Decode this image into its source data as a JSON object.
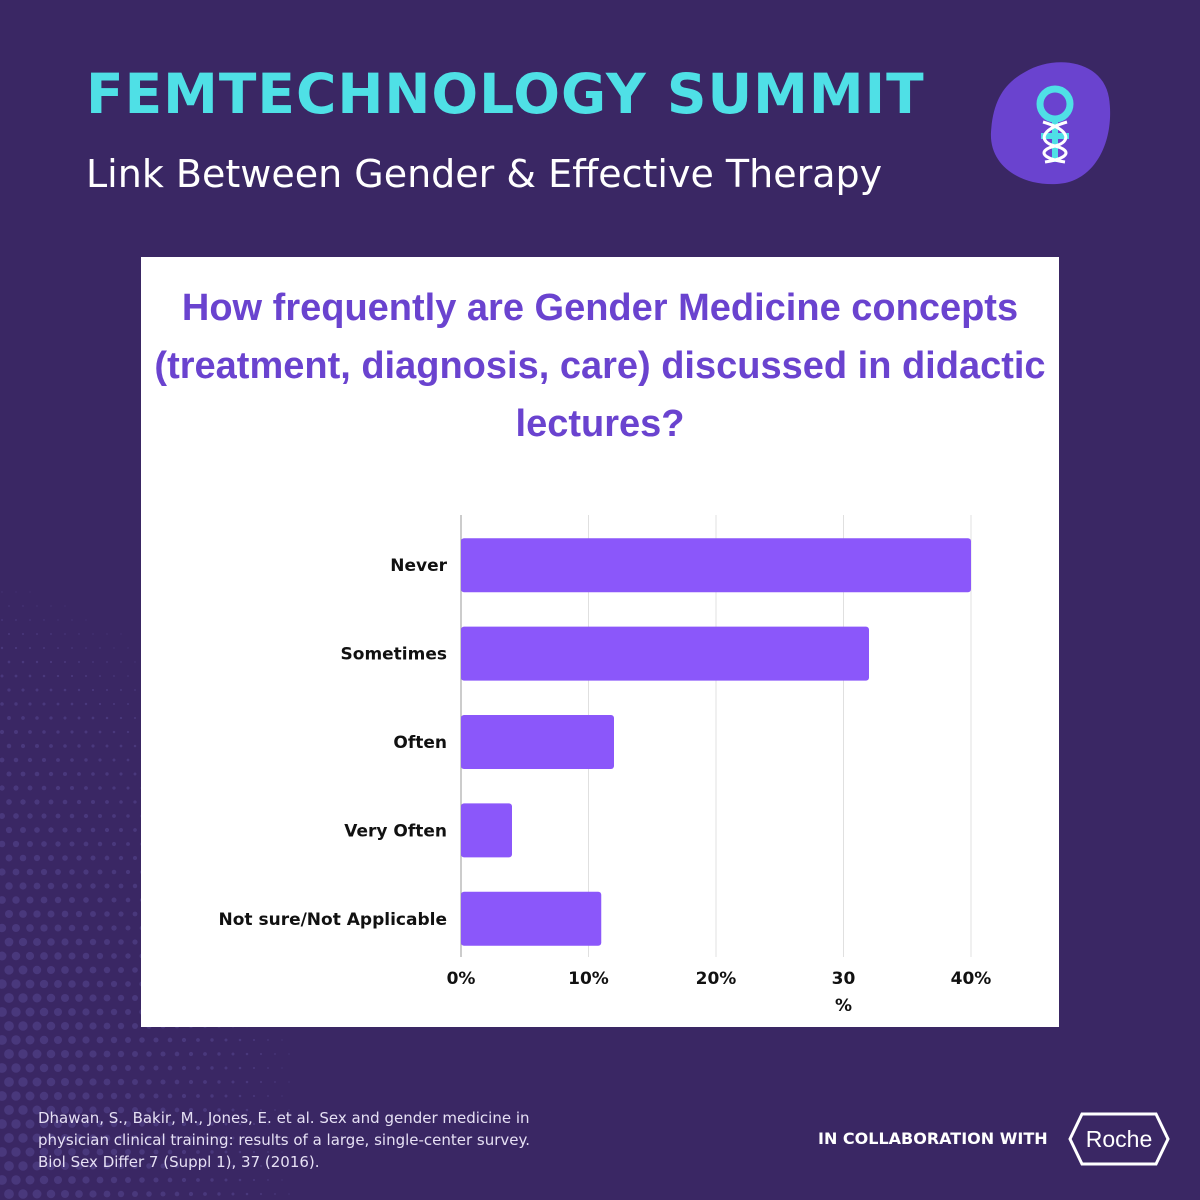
{
  "header": {
    "title": "FEMTECHNOLOGY SUMMIT",
    "subtitle": "Link Between Gender & Effective Therapy"
  },
  "logo": {
    "icon": "female-symbol-caduceus-icon",
    "blob_color": "#6a43cf",
    "symbol_color": "#4fe0e6"
  },
  "colors": {
    "background": "#3a2764",
    "accent": "#4fe0e6",
    "bar": "#8b57fa",
    "title": "#6a43cf"
  },
  "chart_data": {
    "type": "bar",
    "orientation": "horizontal",
    "title": "How frequently are Gender Medicine concepts (treatment, diagnosis, care) discussed in didactic lectures?",
    "categories": [
      "Never",
      "Sometimes",
      "Often",
      "Very Often",
      "Not sure/Not Applicable"
    ],
    "values": [
      40,
      32,
      12,
      4,
      11
    ],
    "unit": "%",
    "xlim": [
      0,
      40
    ],
    "x_ticks": [
      0,
      10,
      20,
      30,
      40
    ],
    "x_tick_labels": [
      "0%",
      "10%",
      "20%",
      "30\n%",
      "40%"
    ],
    "grid": true,
    "legend": "none",
    "bar_color": "#8b57fa"
  },
  "footer": {
    "citation": "Dhawan, S., Bakir, M., Jones, E. et al. Sex and gender medicine in physician clinical training: results of a large, single-center survey. Biol Sex Differ 7 (Suppl 1), 37 (2016).",
    "collab_label": "IN COLLABORATION WITH",
    "partner_logo_text": "Roche"
  }
}
